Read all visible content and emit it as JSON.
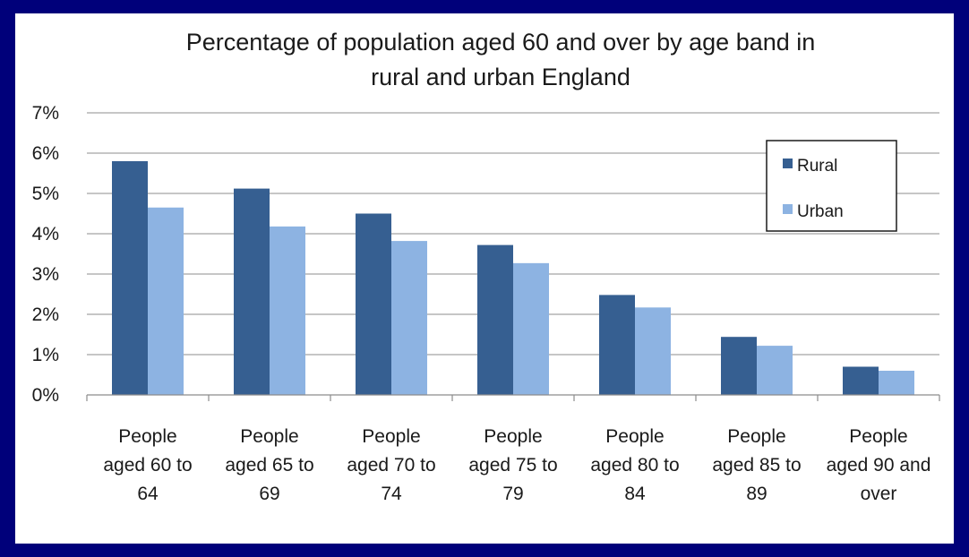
{
  "chart_data": {
    "type": "bar",
    "title_lines": [
      "Percentage of population aged 60 and over by age band in",
      "rural and urban England"
    ],
    "categories": [
      [
        "People",
        "aged 60 to",
        "64"
      ],
      [
        "People",
        "aged 65 to",
        "69"
      ],
      [
        "People",
        "aged 70 to",
        "74"
      ],
      [
        "People",
        "aged 75 to",
        "79"
      ],
      [
        "People",
        "aged 80 to",
        "84"
      ],
      [
        "People",
        "aged 85 to",
        "89"
      ],
      [
        "People",
        "aged 90 and",
        "over"
      ]
    ],
    "series": [
      {
        "name": "Rural",
        "color": "#365f91",
        "values": [
          5.8,
          5.12,
          4.5,
          3.72,
          2.48,
          1.44,
          0.7
        ]
      },
      {
        "name": "Urban",
        "color": "#8db3e2",
        "values": [
          4.65,
          4.18,
          3.82,
          3.27,
          2.17,
          1.22,
          0.6
        ]
      }
    ],
    "ylim": [
      0,
      7
    ],
    "yticks": [
      "0%",
      "1%",
      "2%",
      "3%",
      "4%",
      "5%",
      "6%",
      "7%"
    ],
    "grid": true,
    "legend_position": "top-right"
  }
}
